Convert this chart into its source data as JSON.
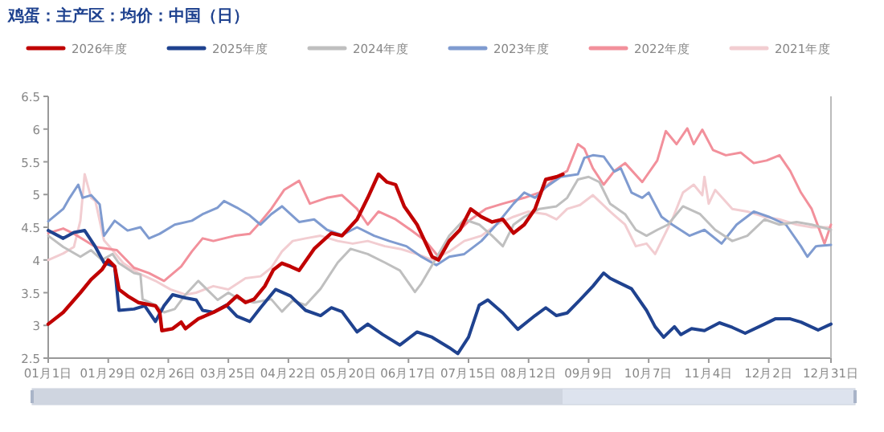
{
  "chart_data": {
    "type": "line",
    "title": "鸡蛋：主产区：均价：中国（日）",
    "legend": "top",
    "marker": "none",
    "line_style": "solid",
    "xlim": [
      "--01-01",
      "--12-31"
    ],
    "xticks": [
      {
        "value": "--01-01",
        "label": "01月1日"
      },
      {
        "value": "--01-29",
        "label": "01月29日"
      },
      {
        "value": "--02-26",
        "label": "02月26日"
      },
      {
        "value": "--03-25",
        "label": "03月25日"
      },
      {
        "value": "--04-22",
        "label": "04月22日"
      },
      {
        "value": "--05-20",
        "label": "05月20日"
      },
      {
        "value": "--06-17",
        "label": "06月17日"
      },
      {
        "value": "--07-15",
        "label": "07月15日"
      },
      {
        "value": "--08-12",
        "label": "08月12日"
      },
      {
        "value": "--09-09",
        "label": "09月9日"
      },
      {
        "value": "--10-07",
        "label": "10月7日"
      },
      {
        "value": "--11-04",
        "label": "11月4日"
      },
      {
        "value": "--12-02",
        "label": "12月2日"
      },
      {
        "value": "--12-31",
        "label": "12月31日"
      }
    ],
    "ylim": [
      2.5,
      6.5
    ],
    "yticks": [
      2.5,
      3,
      3.5,
      4,
      4.5,
      5,
      5.5,
      6,
      6.5
    ],
    "series": [
      {
        "name": "2026年度",
        "color": "#c00000",
        "x": [
          "--01-01",
          "--01-08",
          "--01-16",
          "--01-21",
          "--01-26",
          "--01-29",
          "--02-01",
          "--02-03",
          "--02-07",
          "--02-12",
          "--02-20",
          "--02-22",
          "--02-23",
          "--02-28",
          "--03-03",
          "--03-05",
          "--03-11",
          "--03-18",
          "--03-24",
          "--03-29",
          "--04-02",
          "--04-06",
          "--04-11",
          "--04-15",
          "--04-19",
          "--04-23",
          "--04-27",
          "--05-04",
          "--05-12",
          "--05-17",
          "--05-24",
          "--05-29",
          "--06-03",
          "--06-07",
          "--06-11",
          "--06-15",
          "--06-21",
          "--06-28",
          "--07-01",
          "--07-06",
          "--07-11",
          "--07-16",
          "--07-21",
          "--07-26",
          "--07-31",
          "--08-05",
          "--08-10",
          "--08-15",
          "--08-20",
          "--08-25",
          "--08-28"
        ],
        "values": [
          3.02,
          3.2,
          3.5,
          3.7,
          3.85,
          4.0,
          3.9,
          3.55,
          3.45,
          3.35,
          3.3,
          3.2,
          2.92,
          2.95,
          3.05,
          2.95,
          3.1,
          3.2,
          3.3,
          3.45,
          3.35,
          3.4,
          3.6,
          3.85,
          3.95,
          3.9,
          3.84,
          4.17,
          4.41,
          4.37,
          4.62,
          4.95,
          5.31,
          5.19,
          5.15,
          4.82,
          4.54,
          4.05,
          4.0,
          4.29,
          4.46,
          4.78,
          4.66,
          4.58,
          4.62,
          4.41,
          4.54,
          4.78,
          5.23,
          5.27,
          5.31
        ]
      },
      {
        "name": "2025年度",
        "color": "#1f428f",
        "x": [
          "--01-01",
          "--01-08",
          "--01-13",
          "--01-18",
          "--01-23",
          "--01-27",
          "--02-01",
          "--02-03",
          "--02-10",
          "--02-15",
          "--02-20",
          "--02-24",
          "--02-28",
          "--03-05",
          "--03-10",
          "--03-13",
          "--03-18",
          "--03-24",
          "--03-29",
          "--04-04",
          "--04-09",
          "--04-16",
          "--04-23",
          "--04-30",
          "--05-07",
          "--05-12",
          "--05-17",
          "--05-24",
          "--05-29",
          "--06-05",
          "--06-13",
          "--06-21",
          "--06-28",
          "--07-06",
          "--07-10",
          "--07-15",
          "--07-20",
          "--07-24",
          "--07-31",
          "--08-07",
          "--08-15",
          "--08-20",
          "--08-25",
          "--08-30",
          "--09-05",
          "--09-11",
          "--09-16",
          "--09-19",
          "--09-24",
          "--09-29",
          "--10-06",
          "--10-10",
          "--10-14",
          "--10-19",
          "--10-22",
          "--10-27",
          "--11-02",
          "--11-09",
          "--11-15",
          "--11-21",
          "--11-30",
          "--12-05",
          "--12-12",
          "--12-17",
          "--12-25",
          "--12-31"
        ],
        "values": [
          4.45,
          4.33,
          4.42,
          4.45,
          4.2,
          3.96,
          3.9,
          3.23,
          3.25,
          3.3,
          3.06,
          3.3,
          3.47,
          3.42,
          3.39,
          3.23,
          3.2,
          3.31,
          3.14,
          3.06,
          3.27,
          3.55,
          3.45,
          3.23,
          3.15,
          3.27,
          3.21,
          2.9,
          3.02,
          2.86,
          2.7,
          2.9,
          2.82,
          2.66,
          2.57,
          2.82,
          3.31,
          3.39,
          3.19,
          2.94,
          3.15,
          3.27,
          3.15,
          3.19,
          3.39,
          3.6,
          3.8,
          3.72,
          3.64,
          3.56,
          3.23,
          2.98,
          2.82,
          2.98,
          2.86,
          2.95,
          2.92,
          3.04,
          2.97,
          2.88,
          3.02,
          3.1,
          3.1,
          3.05,
          2.93,
          3.02
        ]
      },
      {
        "name": "2024年度",
        "color": "#bfbfbf",
        "x": [
          "--01-01",
          "--01-08",
          "--01-16",
          "--01-21",
          "--01-26",
          "--01-31",
          "--02-03",
          "--02-10",
          "--02-13",
          "--02-14",
          "--02-20",
          "--02-24",
          "--02-29",
          "--03-05",
          "--03-11",
          "--03-15",
          "--03-20",
          "--03-25",
          "--03-30",
          "--04-06",
          "--04-14",
          "--04-19",
          "--04-24",
          "--04-30",
          "--05-07",
          "--05-15",
          "--05-21",
          "--05-29",
          "--06-06",
          "--06-13",
          "--06-20",
          "--06-23",
          "--06-28",
          "--07-06",
          "--07-13",
          "--07-20",
          "--07-26",
          "--07-31",
          "--08-05",
          "--08-10",
          "--08-17",
          "--08-25",
          "--08-30",
          "--09-04",
          "--09-09",
          "--09-14",
          "--09-19",
          "--09-26",
          "--10-01",
          "--10-06",
          "--10-11",
          "--10-16",
          "--10-23",
          "--10-31",
          "--11-07",
          "--11-15",
          "--11-22",
          "--11-30",
          "--12-07",
          "--12-15",
          "--12-22",
          "--12-31"
        ],
        "values": [
          4.37,
          4.2,
          4.05,
          4.15,
          4.0,
          4.09,
          3.95,
          3.8,
          3.78,
          3.4,
          3.31,
          3.2,
          3.25,
          3.47,
          3.68,
          3.55,
          3.39,
          3.5,
          3.4,
          3.35,
          3.4,
          3.21,
          3.38,
          3.31,
          3.56,
          3.96,
          4.17,
          4.09,
          3.96,
          3.84,
          3.51,
          3.64,
          3.92,
          4.37,
          4.62,
          4.54,
          4.37,
          4.21,
          4.54,
          4.66,
          4.78,
          4.82,
          4.95,
          5.23,
          5.27,
          5.19,
          4.86,
          4.7,
          4.46,
          4.37,
          4.46,
          4.54,
          4.82,
          4.7,
          4.46,
          4.29,
          4.37,
          4.62,
          4.54,
          4.58,
          4.54,
          4.46
        ]
      },
      {
        "name": "2023年度",
        "color": "#7f9bd0",
        "x": [
          "--01-01",
          "--01-08",
          "--01-11",
          "--01-15",
          "--01-17",
          "--01-21",
          "--01-25",
          "--01-27",
          "--02-01",
          "--02-07",
          "--02-13",
          "--02-17",
          "--02-22",
          "--02-29",
          "--03-08",
          "--03-13",
          "--03-20",
          "--03-23",
          "--03-29",
          "--04-04",
          "--04-09",
          "--04-14",
          "--04-19",
          "--04-27",
          "--05-04",
          "--05-10",
          "--05-17",
          "--05-24",
          "--06-01",
          "--06-08",
          "--06-16",
          "--06-23",
          "--06-30",
          "--07-06",
          "--07-13",
          "--07-21",
          "--07-28",
          "--08-05",
          "--08-10",
          "--08-15",
          "--08-20",
          "--08-27",
          "--09-04",
          "--09-07",
          "--09-11",
          "--09-16",
          "--09-21",
          "--09-24",
          "--09-29",
          "--10-04",
          "--10-07",
          "--10-13",
          "--10-18",
          "--10-26",
          "--11-02",
          "--11-10",
          "--11-17",
          "--11-25",
          "--12-02",
          "--12-10",
          "--12-17",
          "--12-20",
          "--12-24",
          "--12-31"
        ],
        "values": [
          4.59,
          4.78,
          4.95,
          5.15,
          4.95,
          4.99,
          4.85,
          4.37,
          4.6,
          4.45,
          4.5,
          4.33,
          4.4,
          4.54,
          4.6,
          4.7,
          4.8,
          4.9,
          4.8,
          4.68,
          4.54,
          4.7,
          4.82,
          4.58,
          4.62,
          4.46,
          4.38,
          4.5,
          4.37,
          4.29,
          4.21,
          4.05,
          3.92,
          4.05,
          4.09,
          4.29,
          4.54,
          4.86,
          5.03,
          4.95,
          5.11,
          5.27,
          5.31,
          5.56,
          5.6,
          5.58,
          5.35,
          5.4,
          5.03,
          4.95,
          5.03,
          4.66,
          4.54,
          4.37,
          4.46,
          4.25,
          4.54,
          4.74,
          4.66,
          4.54,
          4.21,
          4.05,
          4.21,
          4.23
        ]
      },
      {
        "name": "2022年度",
        "color": "#f2909b",
        "x": [
          "--01-01",
          "--01-08",
          "--01-13",
          "--01-18",
          "--01-23",
          "--02-02",
          "--02-10",
          "--02-17",
          "--02-24",
          "--03-03",
          "--03-08",
          "--03-13",
          "--03-18",
          "--03-28",
          "--04-04",
          "--04-09",
          "--04-14",
          "--04-20",
          "--04-27",
          "--05-02",
          "--05-10",
          "--05-17",
          "--05-24",
          "--05-29",
          "--06-03",
          "--06-11",
          "--06-18",
          "--06-25",
          "--07-01",
          "--07-08",
          "--07-16",
          "--07-23",
          "--07-31",
          "--08-10",
          "--08-17",
          "--08-25",
          "--08-30",
          "--09-04",
          "--09-07",
          "--09-11",
          "--09-16",
          "--09-21",
          "--09-26",
          "--10-04",
          "--10-11",
          "--10-15",
          "--10-20",
          "--10-25",
          "--10-28",
          "--11-01",
          "--11-06",
          "--11-12",
          "--11-19",
          "--11-25",
          "--12-01",
          "--12-07",
          "--12-12",
          "--12-17",
          "--12-22",
          "--12-28",
          "--12-31"
        ],
        "values": [
          4.41,
          4.48,
          4.4,
          4.3,
          4.2,
          4.15,
          3.88,
          3.8,
          3.68,
          3.9,
          4.13,
          4.33,
          4.29,
          4.37,
          4.4,
          4.58,
          4.78,
          5.07,
          5.21,
          4.86,
          4.95,
          4.99,
          4.78,
          4.54,
          4.74,
          4.62,
          4.46,
          4.29,
          4.05,
          4.37,
          4.62,
          4.78,
          4.86,
          4.95,
          5.03,
          5.27,
          5.36,
          5.77,
          5.7,
          5.4,
          5.15,
          5.36,
          5.48,
          5.19,
          5.52,
          5.97,
          5.77,
          6.01,
          5.77,
          5.99,
          5.68,
          5.6,
          5.64,
          5.48,
          5.52,
          5.6,
          5.36,
          5.03,
          4.78,
          4.25,
          4.54
        ]
      },
      {
        "name": "2021年度",
        "color": "#f2cdd1",
        "x": [
          "--01-01",
          "--01-08",
          "--01-13",
          "--01-16",
          "--01-18",
          "--01-21",
          "--01-23",
          "--01-27",
          "--01-31",
          "--02-05",
          "--02-12",
          "--02-20",
          "--02-27",
          "--03-05",
          "--03-10",
          "--03-18",
          "--03-25",
          "--04-02",
          "--04-09",
          "--04-14",
          "--04-19",
          "--04-24",
          "--04-30",
          "--05-07",
          "--05-15",
          "--05-22",
          "--05-29",
          "--06-06",
          "--06-13",
          "--06-21",
          "--06-28",
          "--07-06",
          "--07-13",
          "--07-21",
          "--07-28",
          "--08-05",
          "--08-12",
          "--08-20",
          "--08-25",
          "--08-30",
          "--09-05",
          "--09-11",
          "--09-19",
          "--09-26",
          "--10-01",
          "--10-06",
          "--10-10",
          "--10-13",
          "--10-18",
          "--10-23",
          "--10-28",
          "--11-01",
          "--11-02",
          "--11-04",
          "--11-07",
          "--11-15",
          "--11-22",
          "--11-30",
          "--12-07",
          "--12-15",
          "--12-22",
          "--12-31"
        ],
        "values": [
          4.0,
          4.1,
          4.2,
          4.6,
          5.31,
          4.95,
          4.9,
          4.3,
          4.15,
          3.95,
          3.8,
          3.68,
          3.55,
          3.47,
          3.5,
          3.6,
          3.55,
          3.72,
          3.75,
          3.88,
          4.13,
          4.29,
          4.33,
          4.37,
          4.29,
          4.25,
          4.29,
          4.21,
          4.17,
          4.09,
          4.0,
          4.13,
          4.29,
          4.37,
          4.54,
          4.66,
          4.74,
          4.7,
          4.62,
          4.78,
          4.84,
          4.99,
          4.74,
          4.54,
          4.21,
          4.25,
          4.09,
          4.29,
          4.62,
          5.03,
          5.15,
          4.99,
          5.27,
          4.86,
          5.07,
          4.78,
          4.74,
          4.66,
          4.62,
          4.54,
          4.5,
          4.5
        ]
      }
    ]
  }
}
